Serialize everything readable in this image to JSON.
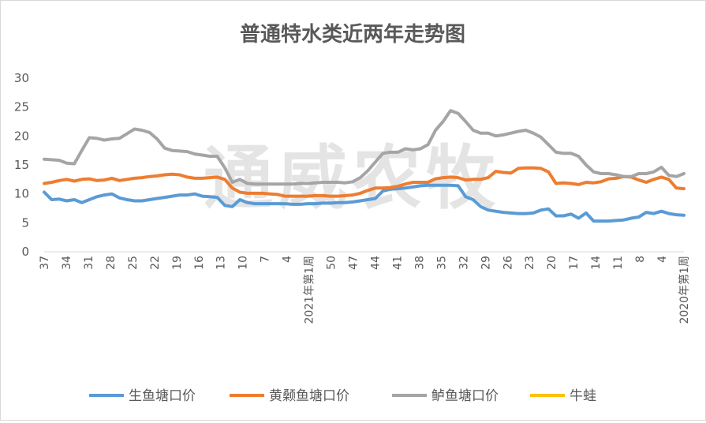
{
  "chart_data": {
    "type": "line",
    "title": "普通特水类近两年走势图",
    "watermark": "通威农牧",
    "xlabel": "",
    "ylabel": "",
    "ylim": [
      0,
      30
    ],
    "yticks": [
      0,
      5,
      10,
      15,
      20,
      25,
      30
    ],
    "grid": false,
    "legend_position": "bottom",
    "x_tick_labels": [
      "37",
      "34",
      "31",
      "28",
      "25",
      "22",
      "19",
      "16",
      "13",
      "10",
      "7",
      "4",
      "2021年第1周",
      "50",
      "47",
      "44",
      "41",
      "38",
      "35",
      "32",
      "29",
      "26",
      "23",
      "20",
      "17",
      "14",
      "11",
      "8",
      "4",
      "2020年第1周"
    ],
    "series": [
      {
        "name": "生鱼塘口价",
        "color": "#5b9bd5",
        "values": [
          10.3,
          9.0,
          9.1,
          8.8,
          9.0,
          8.5,
          9.0,
          9.5,
          9.8,
          10.0,
          9.3,
          9.0,
          8.8,
          8.8,
          9.0,
          9.2,
          9.4,
          9.6,
          9.8,
          9.8,
          10.0,
          9.6,
          9.5,
          9.4,
          8.0,
          7.8,
          9.0,
          8.5,
          8.3,
          8.3,
          8.3,
          8.3,
          8.3,
          8.2,
          8.2,
          8.3,
          8.3,
          8.4,
          8.4,
          8.5,
          8.5,
          8.6,
          8.8,
          9.0,
          9.2,
          10.5,
          10.8,
          10.9,
          11.0,
          11.2,
          11.4,
          11.5,
          11.5,
          11.5,
          11.5,
          11.4,
          9.5,
          9.0,
          7.8,
          7.2,
          7.0,
          6.8,
          6.7,
          6.6,
          6.6,
          6.7,
          7.2,
          7.4,
          6.2,
          6.2,
          6.5,
          5.8,
          6.7,
          5.3,
          5.3,
          5.3,
          5.4,
          5.5,
          5.8,
          6.0,
          6.8,
          6.6,
          7.0,
          6.6,
          6.4,
          6.3
        ]
      },
      {
        "name": "黄颡鱼塘口价",
        "color": "#ed7d31",
        "values": [
          11.8,
          12.0,
          12.3,
          12.5,
          12.2,
          12.5,
          12.6,
          12.3,
          12.4,
          12.7,
          12.3,
          12.5,
          12.7,
          12.8,
          13.0,
          13.1,
          13.3,
          13.4,
          13.3,
          12.9,
          12.7,
          12.7,
          12.8,
          12.9,
          12.5,
          11.0,
          10.3,
          10.1,
          10.1,
          10.1,
          10.0,
          9.9,
          9.6,
          9.6,
          9.6,
          9.6,
          9.7,
          9.7,
          9.6,
          9.6,
          9.7,
          9.8,
          10.1,
          10.6,
          11.0,
          11.0,
          11.1,
          11.3,
          11.7,
          12.0,
          12.0,
          12.0,
          12.6,
          12.8,
          12.9,
          12.8,
          12.4,
          12.5,
          12.5,
          12.8,
          13.9,
          13.7,
          13.6,
          14.4,
          14.5,
          14.5,
          14.4,
          13.8,
          11.8,
          11.9,
          11.8,
          11.6,
          12.0,
          11.9,
          12.1,
          12.6,
          12.7,
          13.0,
          12.9,
          12.4,
          12.0,
          12.5,
          12.9,
          12.5,
          11.0,
          10.9
        ]
      },
      {
        "name": "鲈鱼塘口价",
        "color": "#a5a5a5",
        "values": [
          16.0,
          15.9,
          15.8,
          15.3,
          15.2,
          17.5,
          19.7,
          19.6,
          19.3,
          19.5,
          19.6,
          20.4,
          21.2,
          21.0,
          20.6,
          19.5,
          17.9,
          17.5,
          17.4,
          17.3,
          16.9,
          16.7,
          16.5,
          16.5,
          14.5,
          12.0,
          12.5,
          11.8,
          11.7,
          11.7,
          11.7,
          11.7,
          11.7,
          11.7,
          11.8,
          11.8,
          11.9,
          12.0,
          12.0,
          12.0,
          11.9,
          12.1,
          12.8,
          14.0,
          15.5,
          17.0,
          17.2,
          17.2,
          17.8,
          17.6,
          17.8,
          18.5,
          21.0,
          22.5,
          24.4,
          23.9,
          22.5,
          21.0,
          20.5,
          20.5,
          20.0,
          20.2,
          20.5,
          20.8,
          21.0,
          20.5,
          19.8,
          18.5,
          17.2,
          17.0,
          17.0,
          16.5,
          15.0,
          13.8,
          13.5,
          13.5,
          13.3,
          13.0,
          13.0,
          13.5,
          13.5,
          13.8,
          14.6,
          13.2,
          13.0,
          13.5
        ]
      },
      {
        "name": "牛蛙",
        "color": "#ffc000",
        "values": []
      }
    ]
  }
}
